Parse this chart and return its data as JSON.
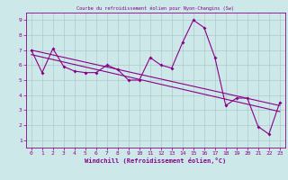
{
  "title": "Courbe du refroidissement éolien pour Nyon-Changins (Sw)",
  "xlabel": "Windchill (Refroidissement éolien,°C)",
  "background_color": "#cce8e8",
  "line_color": "#8b008b",
  "grid_color": "#b0c8c8",
  "xlim": [
    -0.5,
    23.5
  ],
  "ylim": [
    0.5,
    9.5
  ],
  "yticks": [
    1,
    2,
    3,
    4,
    5,
    6,
    7,
    8,
    9
  ],
  "xticks": [
    0,
    1,
    2,
    3,
    4,
    5,
    6,
    7,
    8,
    9,
    10,
    11,
    12,
    13,
    14,
    15,
    16,
    17,
    18,
    19,
    20,
    21,
    22,
    23
  ],
  "main_line_x": [
    0,
    1,
    2,
    3,
    4,
    5,
    6,
    7,
    8,
    9,
    10,
    11,
    12,
    13,
    14,
    15,
    16,
    17,
    18,
    19,
    20,
    21,
    22,
    23
  ],
  "main_line_y": [
    7.0,
    5.5,
    7.1,
    5.9,
    5.6,
    5.5,
    5.5,
    6.0,
    5.7,
    5.0,
    5.0,
    6.5,
    6.0,
    5.8,
    7.5,
    9.0,
    8.5,
    6.5,
    3.3,
    3.8,
    3.8,
    1.9,
    1.4,
    3.5
  ],
  "trend_line1_x": [
    0,
    23
  ],
  "trend_line1_y": [
    7.0,
    3.3
  ],
  "trend_line2_x": [
    0,
    23
  ],
  "trend_line2_y": [
    6.7,
    2.9
  ]
}
